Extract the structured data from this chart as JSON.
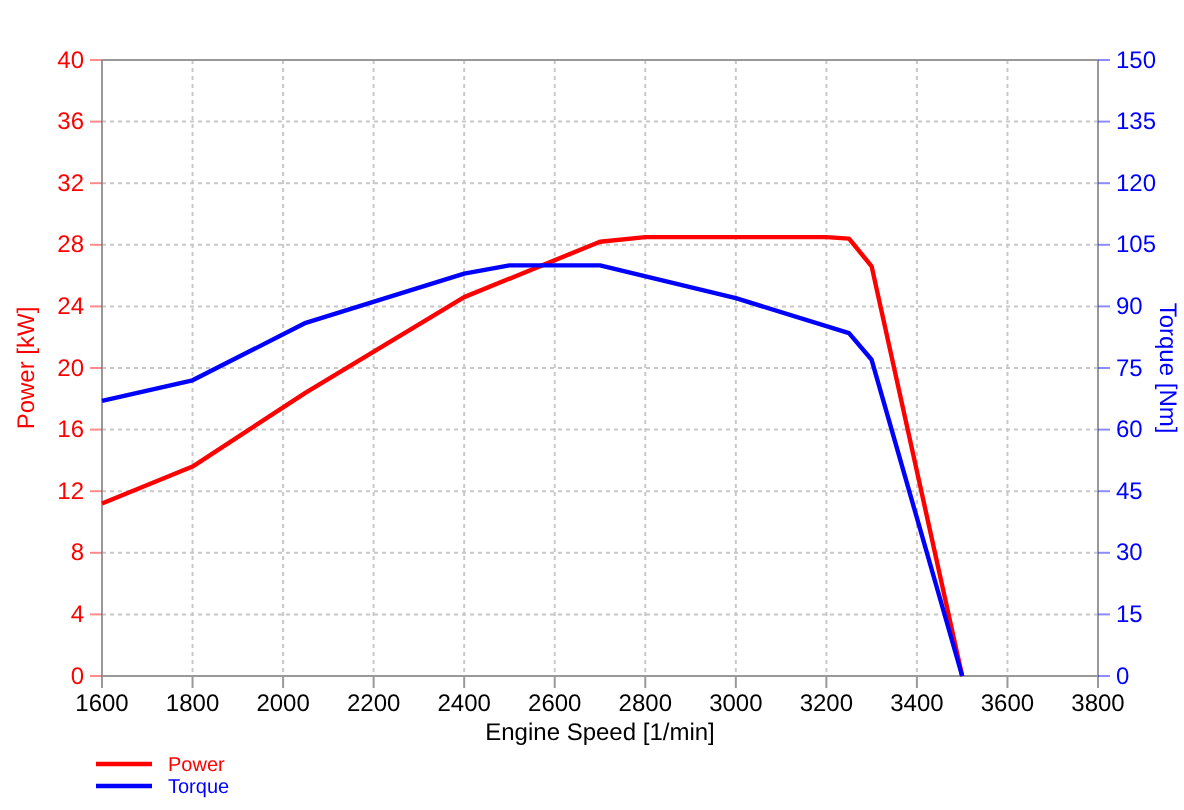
{
  "chart_data": {
    "type": "line",
    "xlabel": "Engine Speed [1/min]",
    "ylabel": "Power [kW]",
    "y2label": "Torque [Nm]",
    "xlim": [
      1600,
      3800
    ],
    "xticks": [
      1600,
      1800,
      2000,
      2200,
      2400,
      2600,
      2800,
      3000,
      3200,
      3400,
      3600,
      3800
    ],
    "ylim": [
      0,
      40
    ],
    "yticks": [
      0,
      4,
      8,
      12,
      16,
      20,
      24,
      28,
      32,
      36,
      40
    ],
    "y2lim": [
      0,
      150
    ],
    "y2ticks": [
      0,
      15,
      30,
      45,
      60,
      75,
      90,
      105,
      120,
      135,
      150
    ],
    "grid": true,
    "legend": "bottom left",
    "marker": "none",
    "line_style": "solid",
    "series": [
      {
        "name": "Power",
        "color": "#ff0000",
        "x": [
          1600,
          1800,
          2050,
          2400,
          2700,
          2800,
          3200,
          3250,
          3300,
          3500
        ],
        "values": [
          11.2,
          13.6,
          18.4,
          24.6,
          28.2,
          28.5,
          28.5,
          28.4,
          26.6,
          0
        ]
      },
      {
        "name": "Torque",
        "color": "#0000ff",
        "axis": "y2",
        "x": [
          1600,
          1800,
          2050,
          2400,
          2500,
          2700,
          3000,
          3250,
          3300,
          3500
        ],
        "values": [
          67,
          72,
          86,
          98,
          100,
          100,
          92,
          83.5,
          77,
          0
        ]
      }
    ]
  }
}
